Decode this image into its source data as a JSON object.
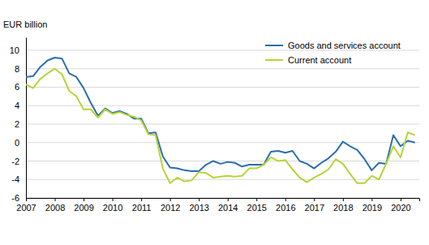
{
  "chart_data": {
    "type": "line",
    "ylabel": "EUR billion",
    "x": [
      2007,
      2007.25,
      2007.5,
      2007.75,
      2008,
      2008.25,
      2008.5,
      2008.75,
      2009,
      2009.25,
      2009.5,
      2009.75,
      2010,
      2010.25,
      2010.5,
      2010.75,
      2011,
      2011.25,
      2011.5,
      2011.75,
      2012,
      2012.25,
      2012.5,
      2012.75,
      2013,
      2013.25,
      2013.5,
      2013.75,
      2014,
      2014.25,
      2014.5,
      2014.75,
      2015,
      2015.25,
      2015.5,
      2015.75,
      2016,
      2016.25,
      2016.5,
      2016.75,
      2017,
      2017.25,
      2017.5,
      2017.75,
      2018,
      2018.25,
      2018.5,
      2018.75,
      2019,
      2019.25,
      2019.5,
      2019.75,
      2020,
      2020.25,
      2020.5
    ],
    "series": [
      {
        "name": "Goods and services account",
        "color": "#2a6faa",
        "values": [
          7.1,
          7.2,
          8.2,
          8.9,
          9.2,
          9.1,
          7.5,
          7.1,
          5.9,
          4.3,
          2.9,
          3.7,
          3.2,
          3.4,
          3.1,
          2.6,
          2.6,
          1.0,
          1.1,
          -1.5,
          -2.7,
          -2.8,
          -3.0,
          -3.1,
          -3.1,
          -2.4,
          -2.0,
          -2.3,
          -2.1,
          -2.2,
          -2.6,
          -2.4,
          -2.4,
          -2.4,
          -1.0,
          -0.9,
          -1.1,
          -0.9,
          -2.0,
          -2.3,
          -2.8,
          -2.2,
          -1.7,
          -1.0,
          0.1,
          -0.4,
          -0.8,
          -1.8,
          -3.0,
          -2.2,
          -2.3,
          0.8,
          -0.4,
          0.2,
          0.0
        ]
      },
      {
        "name": "Current account",
        "color": "#b7d437",
        "values": [
          6.3,
          5.9,
          6.9,
          7.5,
          8.0,
          7.4,
          5.6,
          5.0,
          3.6,
          3.6,
          2.7,
          3.6,
          3.1,
          3.3,
          3.0,
          2.8,
          2.4,
          0.9,
          0.8,
          -2.8,
          -4.4,
          -3.8,
          -4.2,
          -4.1,
          -3.2,
          -3.3,
          -3.8,
          -3.7,
          -3.6,
          -3.7,
          -3.6,
          -2.8,
          -2.8,
          -2.4,
          -1.6,
          -2.0,
          -1.9,
          -2.9,
          -3.8,
          -4.3,
          -3.8,
          -3.4,
          -2.9,
          -1.8,
          -2.3,
          -3.4,
          -4.4,
          -4.4,
          -3.6,
          -4.0,
          -2.3,
          -0.4,
          -1.6,
          1.1,
          0.8
        ]
      }
    ],
    "xlim": [
      2007,
      2020.65
    ],
    "xticks": [
      2007,
      2008,
      2009,
      2010,
      2011,
      2012,
      2013,
      2014,
      2015,
      2016,
      2017,
      2018,
      2019,
      2020
    ],
    "ylim": [
      -6,
      11.4
    ],
    "yticks": [
      -6,
      -4,
      -2,
      0,
      2,
      4,
      6,
      8,
      10
    ],
    "grid": true,
    "legend": "top-right"
  }
}
